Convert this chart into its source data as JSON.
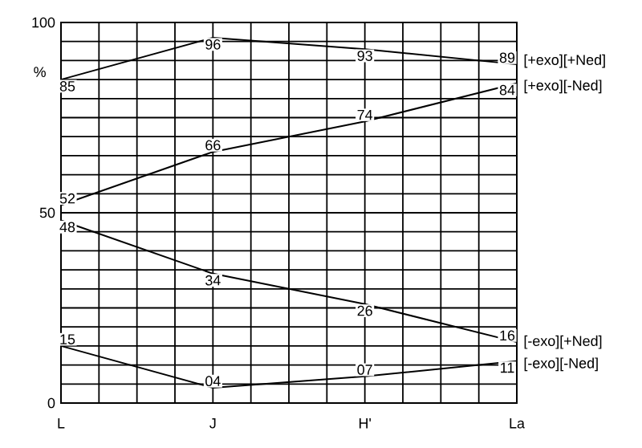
{
  "chart_data": {
    "type": "line",
    "ylabel": "%",
    "categories": [
      "L",
      "J",
      "H'",
      "La"
    ],
    "series": [
      {
        "name": "[+exo][+Ned]",
        "color": "#000000",
        "values": [
          85,
          96,
          93,
          89
        ],
        "value_labels": [
          "85",
          "96",
          "93",
          "89"
        ]
      },
      {
        "name": "[+exo][-Ned]",
        "color": "#000000",
        "values": [
          52,
          66,
          74,
          84
        ],
        "value_labels": [
          "52",
          "66",
          "74",
          "84"
        ]
      },
      {
        "name": "[-exo][+Ned]",
        "color": "#000000",
        "values": [
          48,
          34,
          26,
          16
        ],
        "value_labels": [
          "48",
          "34",
          "26",
          "16"
        ]
      },
      {
        "name": "[-exo][-Ned]",
        "color": "#000000",
        "values": [
          15,
          4,
          7,
          11
        ],
        "value_labels": [
          "15",
          "04",
          "07",
          "11"
        ]
      }
    ],
    "ylim": [
      0,
      100
    ],
    "yticks": [
      0,
      {
        "value": 5,
        "label": null
      },
      {
        "value": 10,
        "label": null
      },
      {
        "value": 15,
        "label": null
      },
      {
        "value": 20,
        "label": null
      },
      {
        "value": 25,
        "label": null
      },
      {
        "value": 30,
        "label": null
      },
      {
        "value": 35,
        "label": null
      },
      {
        "value": 40,
        "label": null
      },
      {
        "value": 45,
        "label": null
      },
      50,
      {
        "value": 55,
        "label": null
      },
      {
        "value": 60,
        "label": null
      },
      {
        "value": 65,
        "label": null
      },
      {
        "value": 70,
        "label": null
      },
      {
        "value": 75,
        "label": null
      },
      {
        "value": 80,
        "label": null
      },
      {
        "value": 85,
        "label": null
      },
      {
        "value": 90,
        "label": null
      },
      {
        "value": 95,
        "label": null
      },
      100
    ],
    "grid": true
  }
}
